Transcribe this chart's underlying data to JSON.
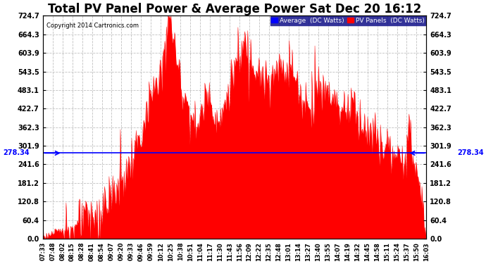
{
  "title": "Total PV Panel Power & Average Power Sat Dec 20 16:12",
  "copyright": "Copyright 2014 Cartronics.com",
  "average_value": 278.34,
  "ymin": 0.0,
  "ymax": 724.7,
  "yticks": [
    0.0,
    60.4,
    120.8,
    181.2,
    241.6,
    301.9,
    362.3,
    422.7,
    483.1,
    543.5,
    603.9,
    664.3,
    724.7
  ],
  "ytick_labels": [
    "0.0",
    "60.4",
    "120.8",
    "181.2",
    "241.6",
    "301.9",
    "362.3",
    "422.7",
    "483.1",
    "543.5",
    "603.9",
    "664.3",
    "724.7"
  ],
  "pv_color": "#FF0000",
  "avg_color": "#0000FF",
  "background_color": "#FFFFFF",
  "grid_color": "#C0C0C0",
  "title_fontsize": 12,
  "legend_avg_label": "Average  (DC Watts)",
  "legend_pv_label": "PV Panels  (DC Watts)",
  "x_labels": [
    "07:33",
    "07:48",
    "08:02",
    "08:15",
    "08:28",
    "08:41",
    "08:54",
    "09:07",
    "09:20",
    "09:33",
    "09:46",
    "09:59",
    "10:12",
    "10:25",
    "10:38",
    "10:51",
    "11:04",
    "11:17",
    "11:30",
    "11:43",
    "11:56",
    "12:09",
    "12:22",
    "12:35",
    "12:48",
    "13:01",
    "13:14",
    "13:27",
    "13:40",
    "13:55",
    "14:07",
    "14:19",
    "14:32",
    "14:45",
    "14:58",
    "15:11",
    "15:24",
    "15:37",
    "15:50",
    "16:03"
  ]
}
